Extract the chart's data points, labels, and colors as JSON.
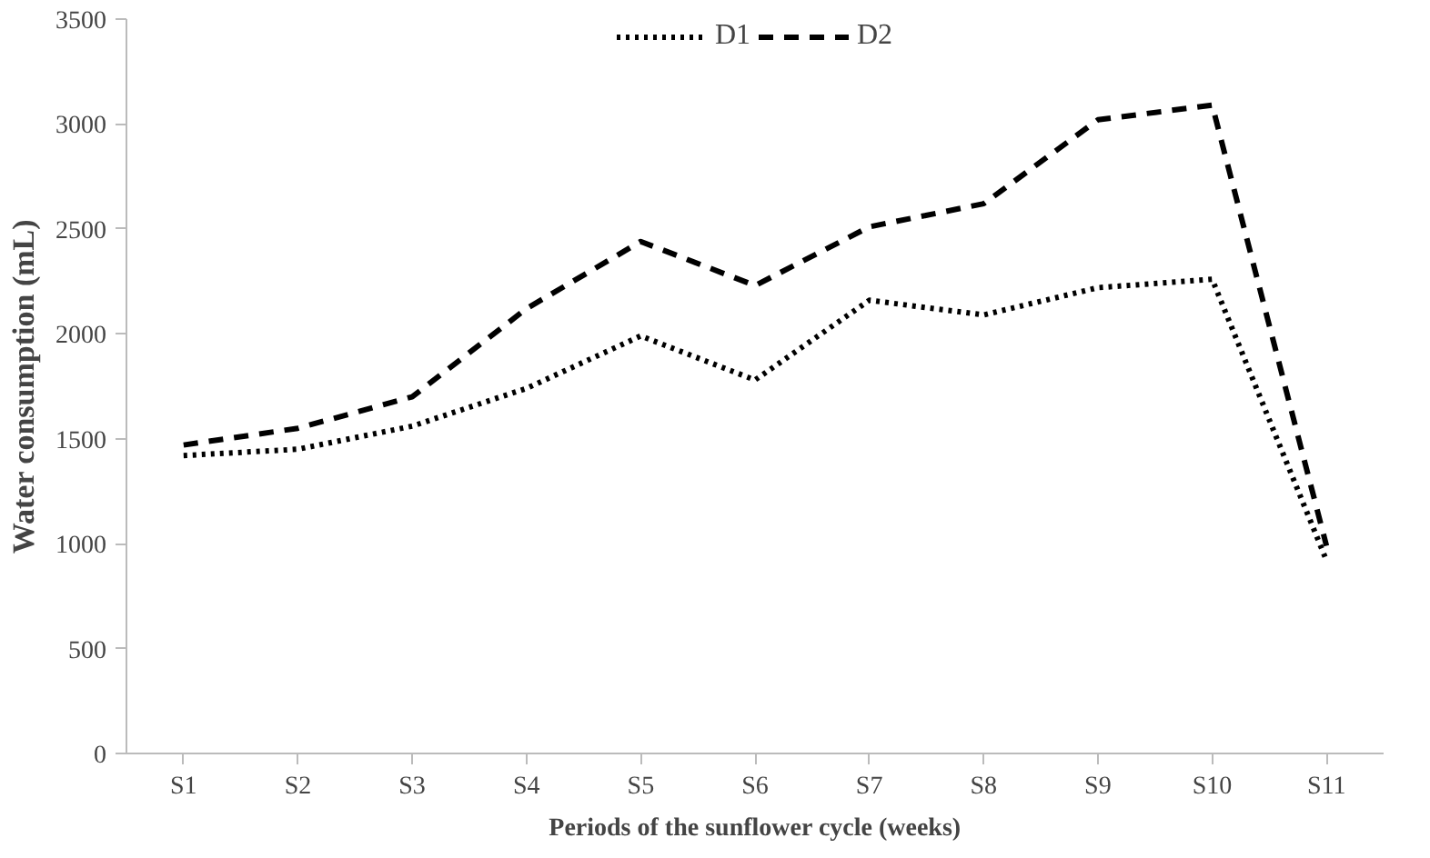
{
  "chart_data": {
    "type": "line",
    "xlabel": "Periods of the sunflower cycle (weeks)",
    "ylabel": "Water consumption (mL)",
    "categories": [
      "S1",
      "S2",
      "S3",
      "S4",
      "S5",
      "S6",
      "S7",
      "S8",
      "S9",
      "S10",
      "S11"
    ],
    "series": [
      {
        "name": "D1",
        "color": "#000000",
        "line_style": "dotted",
        "values": [
          1420,
          1450,
          1560,
          1740,
          1990,
          1780,
          2160,
          2090,
          2220,
          2260,
          920
        ]
      },
      {
        "name": "D2",
        "color": "#000000",
        "line_style": "dashed",
        "values": [
          1470,
          1550,
          1700,
          2120,
          2440,
          2230,
          2510,
          2620,
          3020,
          3090,
          990
        ]
      }
    ],
    "ylim": [
      0,
      3500
    ],
    "yticks": [
      0,
      500,
      1000,
      1500,
      2000,
      2500,
      3000,
      3500
    ],
    "grid": false,
    "legend": "top",
    "marker": "none"
  }
}
